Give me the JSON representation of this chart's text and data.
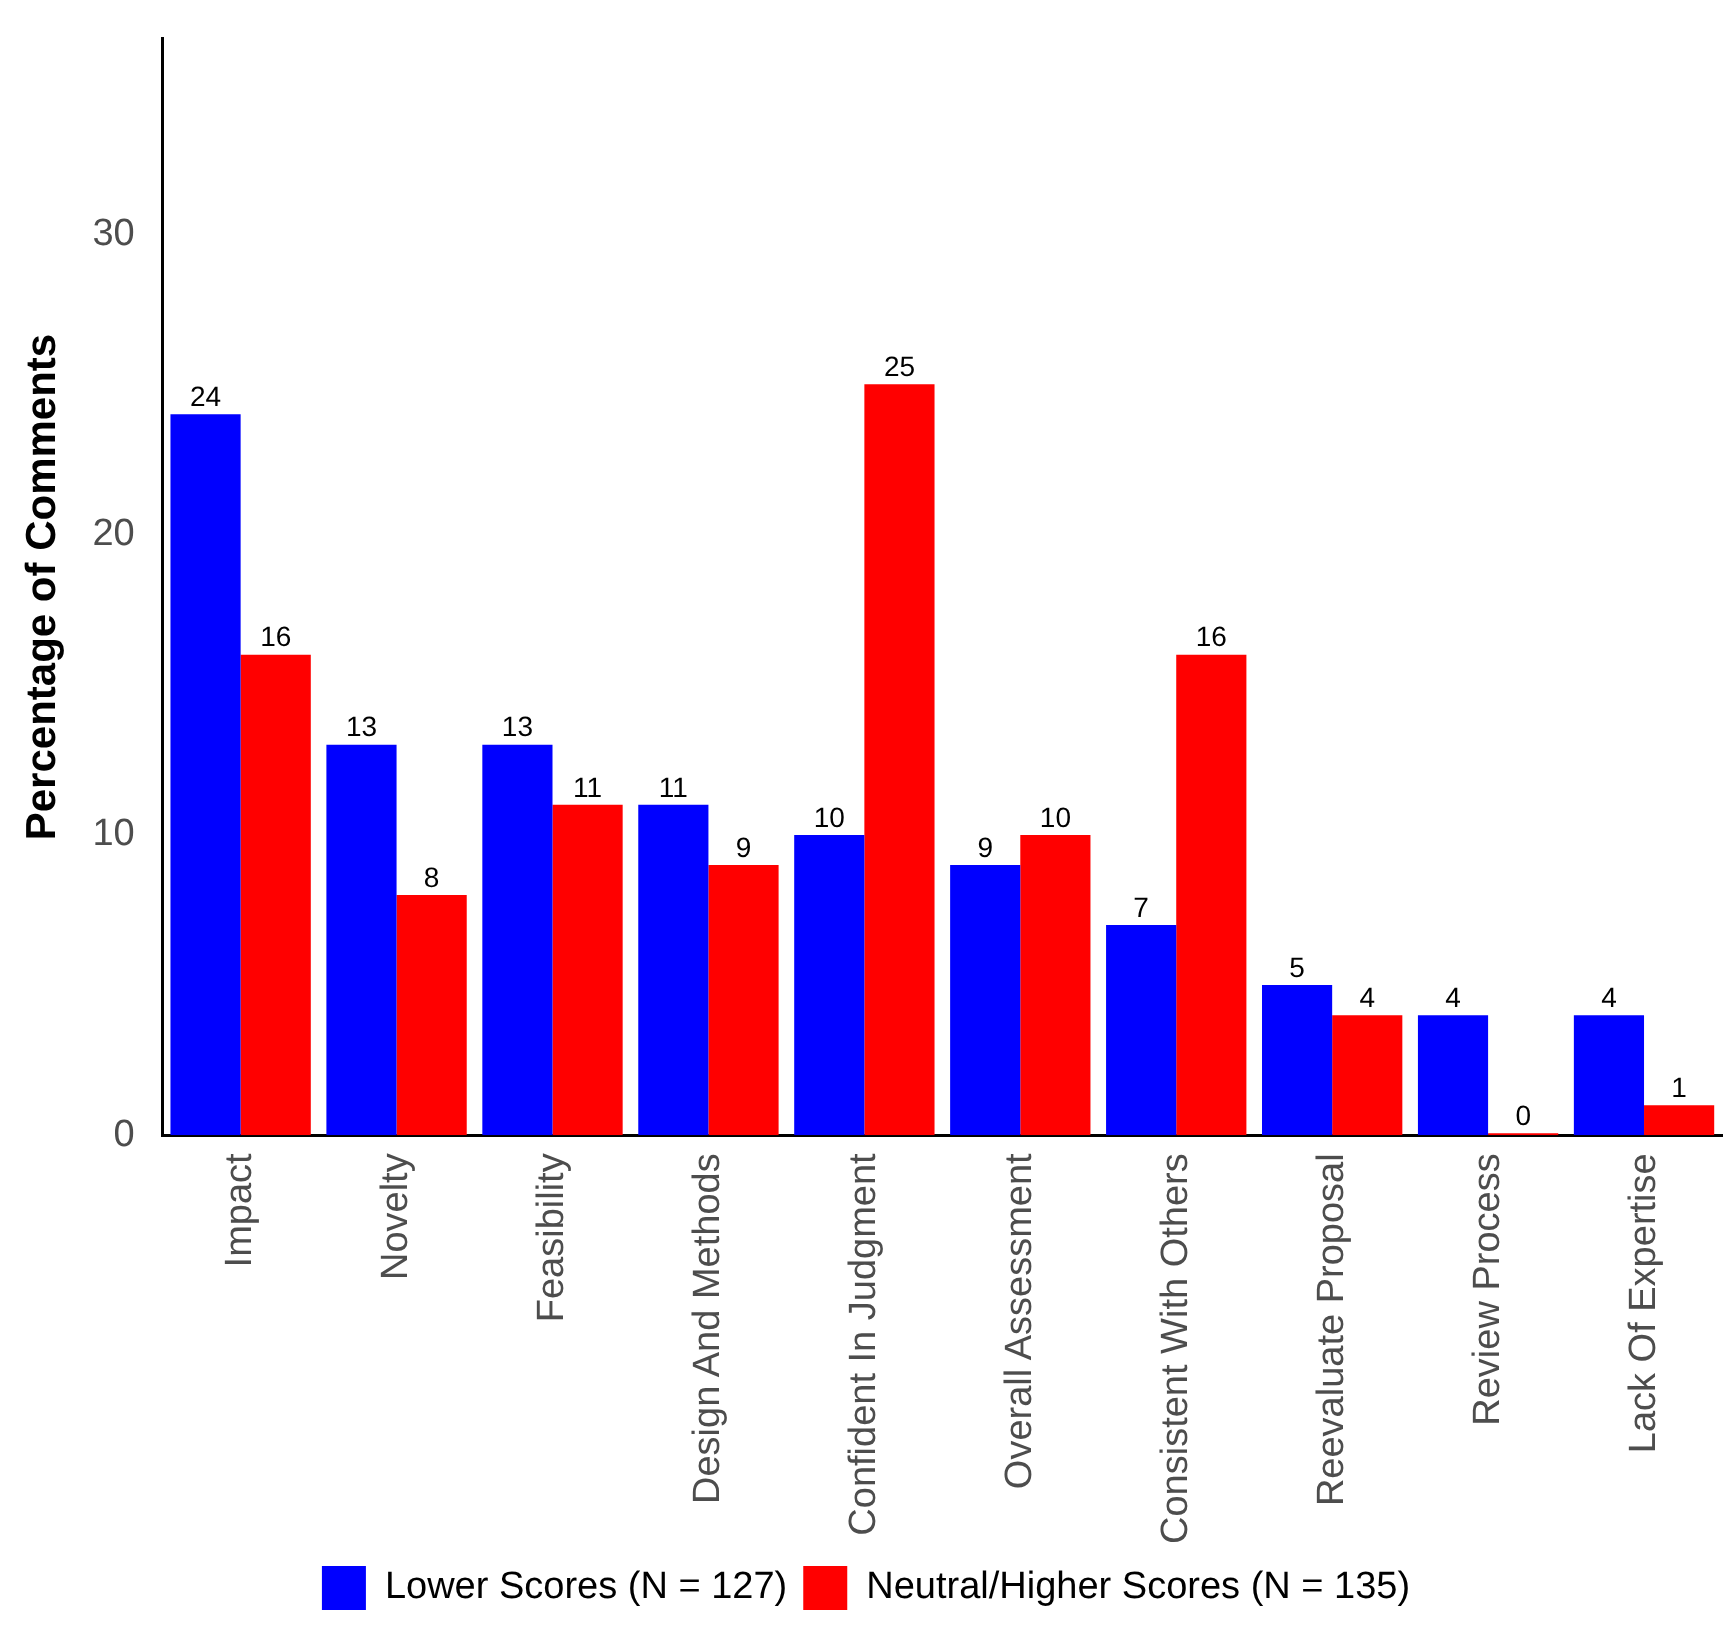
{
  "chart_data": {
    "type": "bar",
    "ylabel": "Percentage of Comments",
    "categories": [
      "Impact",
      "Novelty",
      "Feasibility",
      "Design And Methods",
      "Confident In Judgment",
      "Overall Assessment",
      "Consistent With Others",
      "Reevaluate Proposal",
      "Review Process",
      "Lack Of Expertise"
    ],
    "series": [
      {
        "name": "Lower Scores (N = 127)",
        "color": "#0000ff",
        "values": [
          24,
          13,
          13,
          11,
          10,
          9,
          7,
          5,
          4,
          4
        ]
      },
      {
        "name": "Neutral/Higher Scores (N = 135)",
        "color": "#ff0000",
        "values": [
          16,
          8,
          11,
          9,
          25,
          10,
          16,
          4,
          0,
          1
        ]
      }
    ],
    "ylim": [
      0,
      36.5
    ],
    "yticks": [
      0,
      10,
      20,
      30
    ],
    "grid": false,
    "legend": "bottom",
    "data_labels": true
  }
}
